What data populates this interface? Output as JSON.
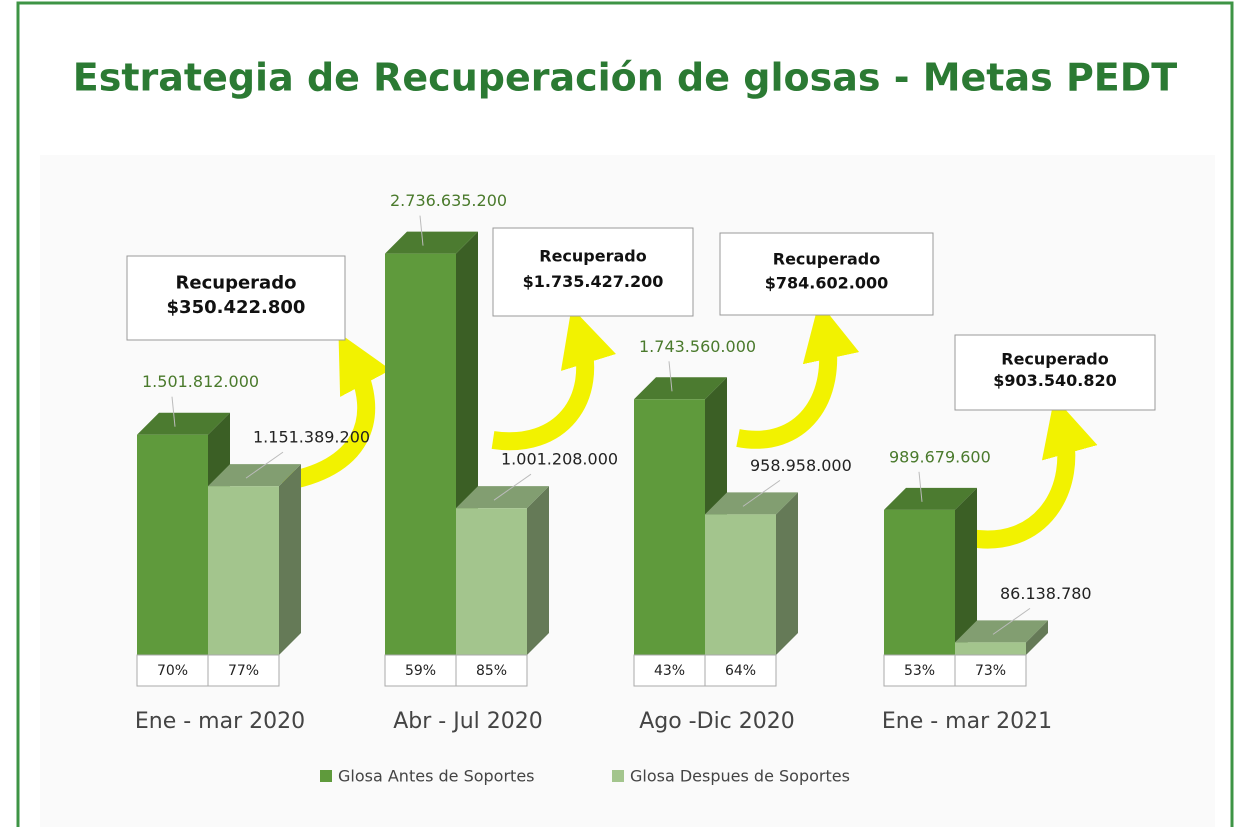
{
  "chart_data": {
    "type": "bar3d",
    "title": "Estrategia de Recuperación de glosas - Metas PEDT",
    "categories": [
      "Ene - mar 2020",
      "Abr - Jul 2020",
      "Ago -Dic 2020",
      "Ene - mar 2021"
    ],
    "series": [
      {
        "name": "Glosa Antes de Soportes",
        "color": "#5f9a3c",
        "values": [
          1501812000,
          2736635200,
          1743560000,
          989679600
        ],
        "value_labels": [
          "1.501.812.000",
          "2.736.635.200",
          "1.743.560.000",
          "989.679.600"
        ]
      },
      {
        "name": "Glosa Despues de Soportes",
        "color": "#a3c58d",
        "values": [
          1151389200,
          1001208000,
          958958000,
          86138780
        ],
        "value_labels": [
          "1.151.389.200",
          "1.001.208.000",
          "958.958.000",
          "86.138.780"
        ]
      }
    ],
    "percentages": [
      [
        "70%",
        "77%"
      ],
      [
        "59%",
        "85%"
      ],
      [
        "43%",
        "64%"
      ],
      [
        "53%",
        "73%"
      ]
    ],
    "annotations": [
      {
        "title": "Recuperado",
        "amount": "$350.422.800"
      },
      {
        "title": "Recuperado",
        "amount": "$1.735.427.200"
      },
      {
        "title": "Recuperado",
        "amount": "$784.602.000"
      },
      {
        "title": "Recuperado",
        "amount": "$903.540.820"
      }
    ],
    "ylim": [
      0,
      3000000000
    ],
    "legend": "bottom"
  }
}
